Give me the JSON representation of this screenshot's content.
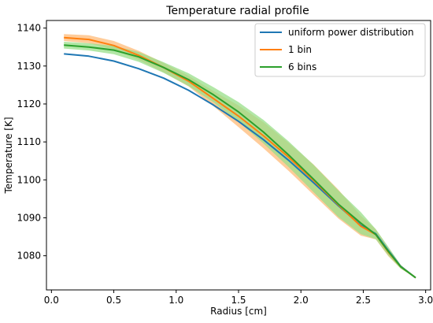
{
  "chart_data": {
    "type": "line",
    "title": "Temperature radial profile",
    "xlabel": "Radius [cm]",
    "ylabel": "Temperature [K]",
    "xlim": [
      -0.04,
      3.04
    ],
    "ylim": [
      1071,
      1142
    ],
    "xticks": [
      0.0,
      0.5,
      1.0,
      1.5,
      2.0,
      2.5,
      3.0
    ],
    "xtick_labels": [
      "0.0",
      "0.5",
      "1.0",
      "1.5",
      "2.0",
      "2.5",
      "3.0"
    ],
    "yticks": [
      1080,
      1090,
      1100,
      1110,
      1120,
      1130,
      1140
    ],
    "ytick_labels": [
      "1080",
      "1090",
      "1100",
      "1110",
      "1120",
      "1130",
      "1140"
    ],
    "grid": false,
    "legend_position": "top-right",
    "series": [
      {
        "name": "uniform power distribution",
        "color": "#1f77b4",
        "x": [
          0.1,
          0.3,
          0.5,
          0.7,
          0.9,
          1.1,
          1.3,
          1.5,
          1.7,
          1.9,
          2.1,
          2.3,
          2.48,
          2.6,
          2.7,
          2.8,
          2.92
        ],
        "y": [
          1133.2,
          1132.6,
          1131.3,
          1129.3,
          1126.8,
          1123.6,
          1119.7,
          1115.4,
          1110.6,
          1105.2,
          1099.3,
          1093.2,
          1088.0,
          1085.8,
          1081.4,
          1077.2,
          1074.2
        ]
      },
      {
        "name": "1 bin",
        "color": "#ff7f0e",
        "band_color": "#ffbb78",
        "x": [
          0.1,
          0.3,
          0.5,
          0.7,
          0.9,
          1.1,
          1.3,
          1.5,
          1.7,
          1.9,
          2.1,
          2.3,
          2.48,
          2.6,
          2.7,
          2.8,
          2.92
        ],
        "y": [
          1137.5,
          1137.0,
          1135.4,
          1132.8,
          1129.6,
          1126.0,
          1121.4,
          1116.8,
          1111.6,
          1106.0,
          1099.9,
          1093.4,
          1087.8,
          1085.6,
          1081.0,
          1077.1,
          1074.2
        ],
        "lower": [
          1136.6,
          1136.0,
          1134.3,
          1131.6,
          1128.3,
          1124.6,
          1119.4,
          1113.9,
          1108.3,
          1102.4,
          1096.1,
          1089.8,
          1085.3,
          1084.3,
          1079.9,
          1076.6,
          1074.2
        ],
        "upper": [
          1138.4,
          1138.1,
          1136.6,
          1134.0,
          1130.8,
          1127.4,
          1123.4,
          1119.6,
          1115.2,
          1109.8,
          1104.1,
          1097.4,
          1090.6,
          1087.0,
          1082.2,
          1077.6,
          1074.2
        ]
      },
      {
        "name": "6 bins",
        "color": "#2ca02c",
        "band_color": "#98df8a",
        "x": [
          0.1,
          0.3,
          0.5,
          0.7,
          0.9,
          1.1,
          1.3,
          1.5,
          1.7,
          1.9,
          2.1,
          2.3,
          2.48,
          2.6,
          2.7,
          2.8,
          2.92
        ],
        "y": [
          1135.5,
          1135.0,
          1134.2,
          1132.4,
          1129.6,
          1126.4,
          1122.4,
          1117.9,
          1112.6,
          1106.6,
          1100.2,
          1093.6,
          1088.6,
          1085.6,
          1081.2,
          1077.1,
          1074.2
        ],
        "lower": [
          1134.6,
          1134.1,
          1133.1,
          1131.1,
          1128.2,
          1124.7,
          1120.4,
          1115.3,
          1109.6,
          1103.4,
          1096.8,
          1090.2,
          1085.7,
          1084.4,
          1080.1,
          1076.6,
          1074.2
        ],
        "upper": [
          1136.4,
          1136.0,
          1135.3,
          1133.7,
          1131.0,
          1128.1,
          1124.4,
          1120.5,
          1115.8,
          1110.2,
          1104.0,
          1097.2,
          1091.5,
          1087.0,
          1082.4,
          1077.6,
          1074.2
        ]
      }
    ]
  }
}
